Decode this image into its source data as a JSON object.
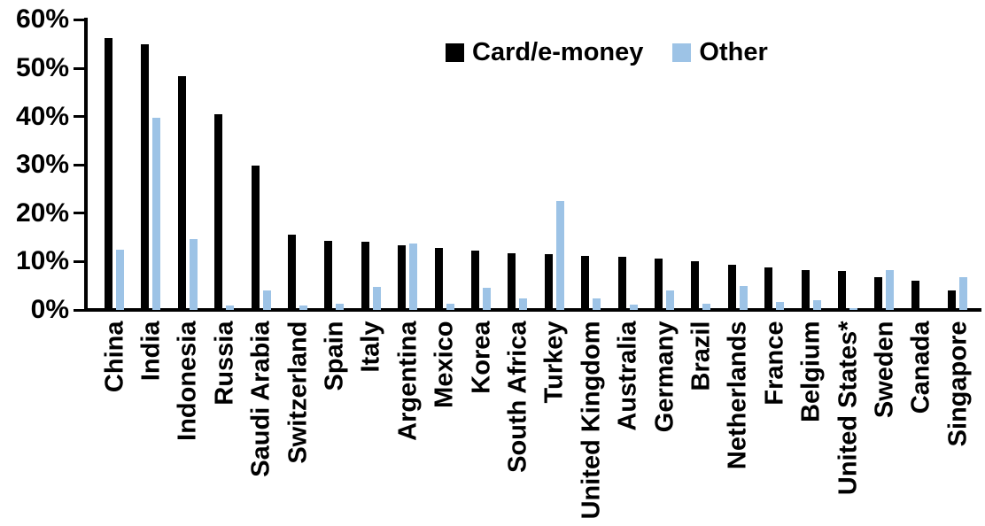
{
  "chart_data": {
    "type": "bar",
    "title": "",
    "xlabel": "",
    "ylabel": "",
    "ylim": [
      0,
      60
    ],
    "ytick_step": 10,
    "ytick_labels": [
      "0%",
      "10%",
      "20%",
      "30%",
      "40%",
      "50%",
      "60%"
    ],
    "grid": false,
    "legend_position": "top-center",
    "categories": [
      "China",
      "India",
      "Indonesia",
      "Russia",
      "Saudi Arabia",
      "Switzerland",
      "Spain",
      "Italy",
      "Argentina",
      "Mexico",
      "Korea",
      "South Africa",
      "Turkey",
      "United Kingdom",
      "Australia",
      "Germany",
      "Brazil",
      "Netherlands",
      "France",
      "Belgium",
      "United States*",
      "Sweden",
      "Canada",
      "Singapore"
    ],
    "series": [
      {
        "name": "Card/e-money",
        "color": "#000000",
        "values": [
          56.2,
          55.0,
          48.4,
          40.5,
          29.9,
          15.6,
          14.3,
          14.1,
          13.4,
          12.9,
          12.2,
          11.7,
          11.6,
          11.1,
          10.9,
          10.7,
          10.0,
          9.3,
          8.7,
          8.3,
          8.0,
          6.7,
          6.1,
          4.0
        ]
      },
      {
        "name": "Other",
        "color": "#9DC3E6",
        "values": [
          12.4,
          39.8,
          14.6,
          1.0,
          4.1,
          0.9,
          1.2,
          4.7,
          13.8,
          1.3,
          4.6,
          2.4,
          22.5,
          2.4,
          1.1,
          4.0,
          1.2,
          4.9,
          1.6,
          2.1,
          0.4,
          8.2,
          0.0,
          6.8
        ]
      }
    ]
  }
}
